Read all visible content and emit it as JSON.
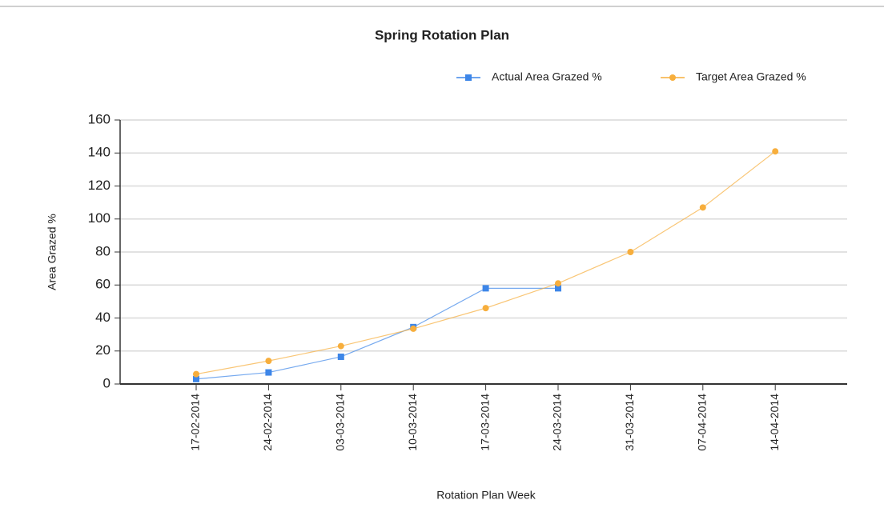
{
  "chart_data": {
    "type": "line",
    "title": "Spring Rotation Plan",
    "x_label": "Rotation Plan Week",
    "y_label": "Area Grazed %",
    "categories": [
      "17-02-2014",
      "24-02-2014",
      "03-03-2014",
      "10-03-2014",
      "17-03-2014",
      "24-03-2014",
      "31-03-2014",
      "07-04-2014",
      "14-04-2014"
    ],
    "series": [
      {
        "name": "Actual Area Grazed %",
        "color": "#3d86e8",
        "marker": "square",
        "values": [
          3,
          7,
          16.5,
          34.5,
          58,
          58,
          null,
          null,
          null
        ]
      },
      {
        "name": "Target Area Grazed %",
        "color": "#f7ae3c",
        "marker": "circle",
        "values": [
          6,
          14,
          23,
          33.5,
          46,
          61,
          80,
          107,
          141
        ]
      }
    ],
    "ylim": [
      0,
      160
    ],
    "yticks": [
      0,
      20,
      40,
      60,
      80,
      100,
      120,
      140,
      160
    ],
    "grid": true,
    "legend": "top-right"
  }
}
